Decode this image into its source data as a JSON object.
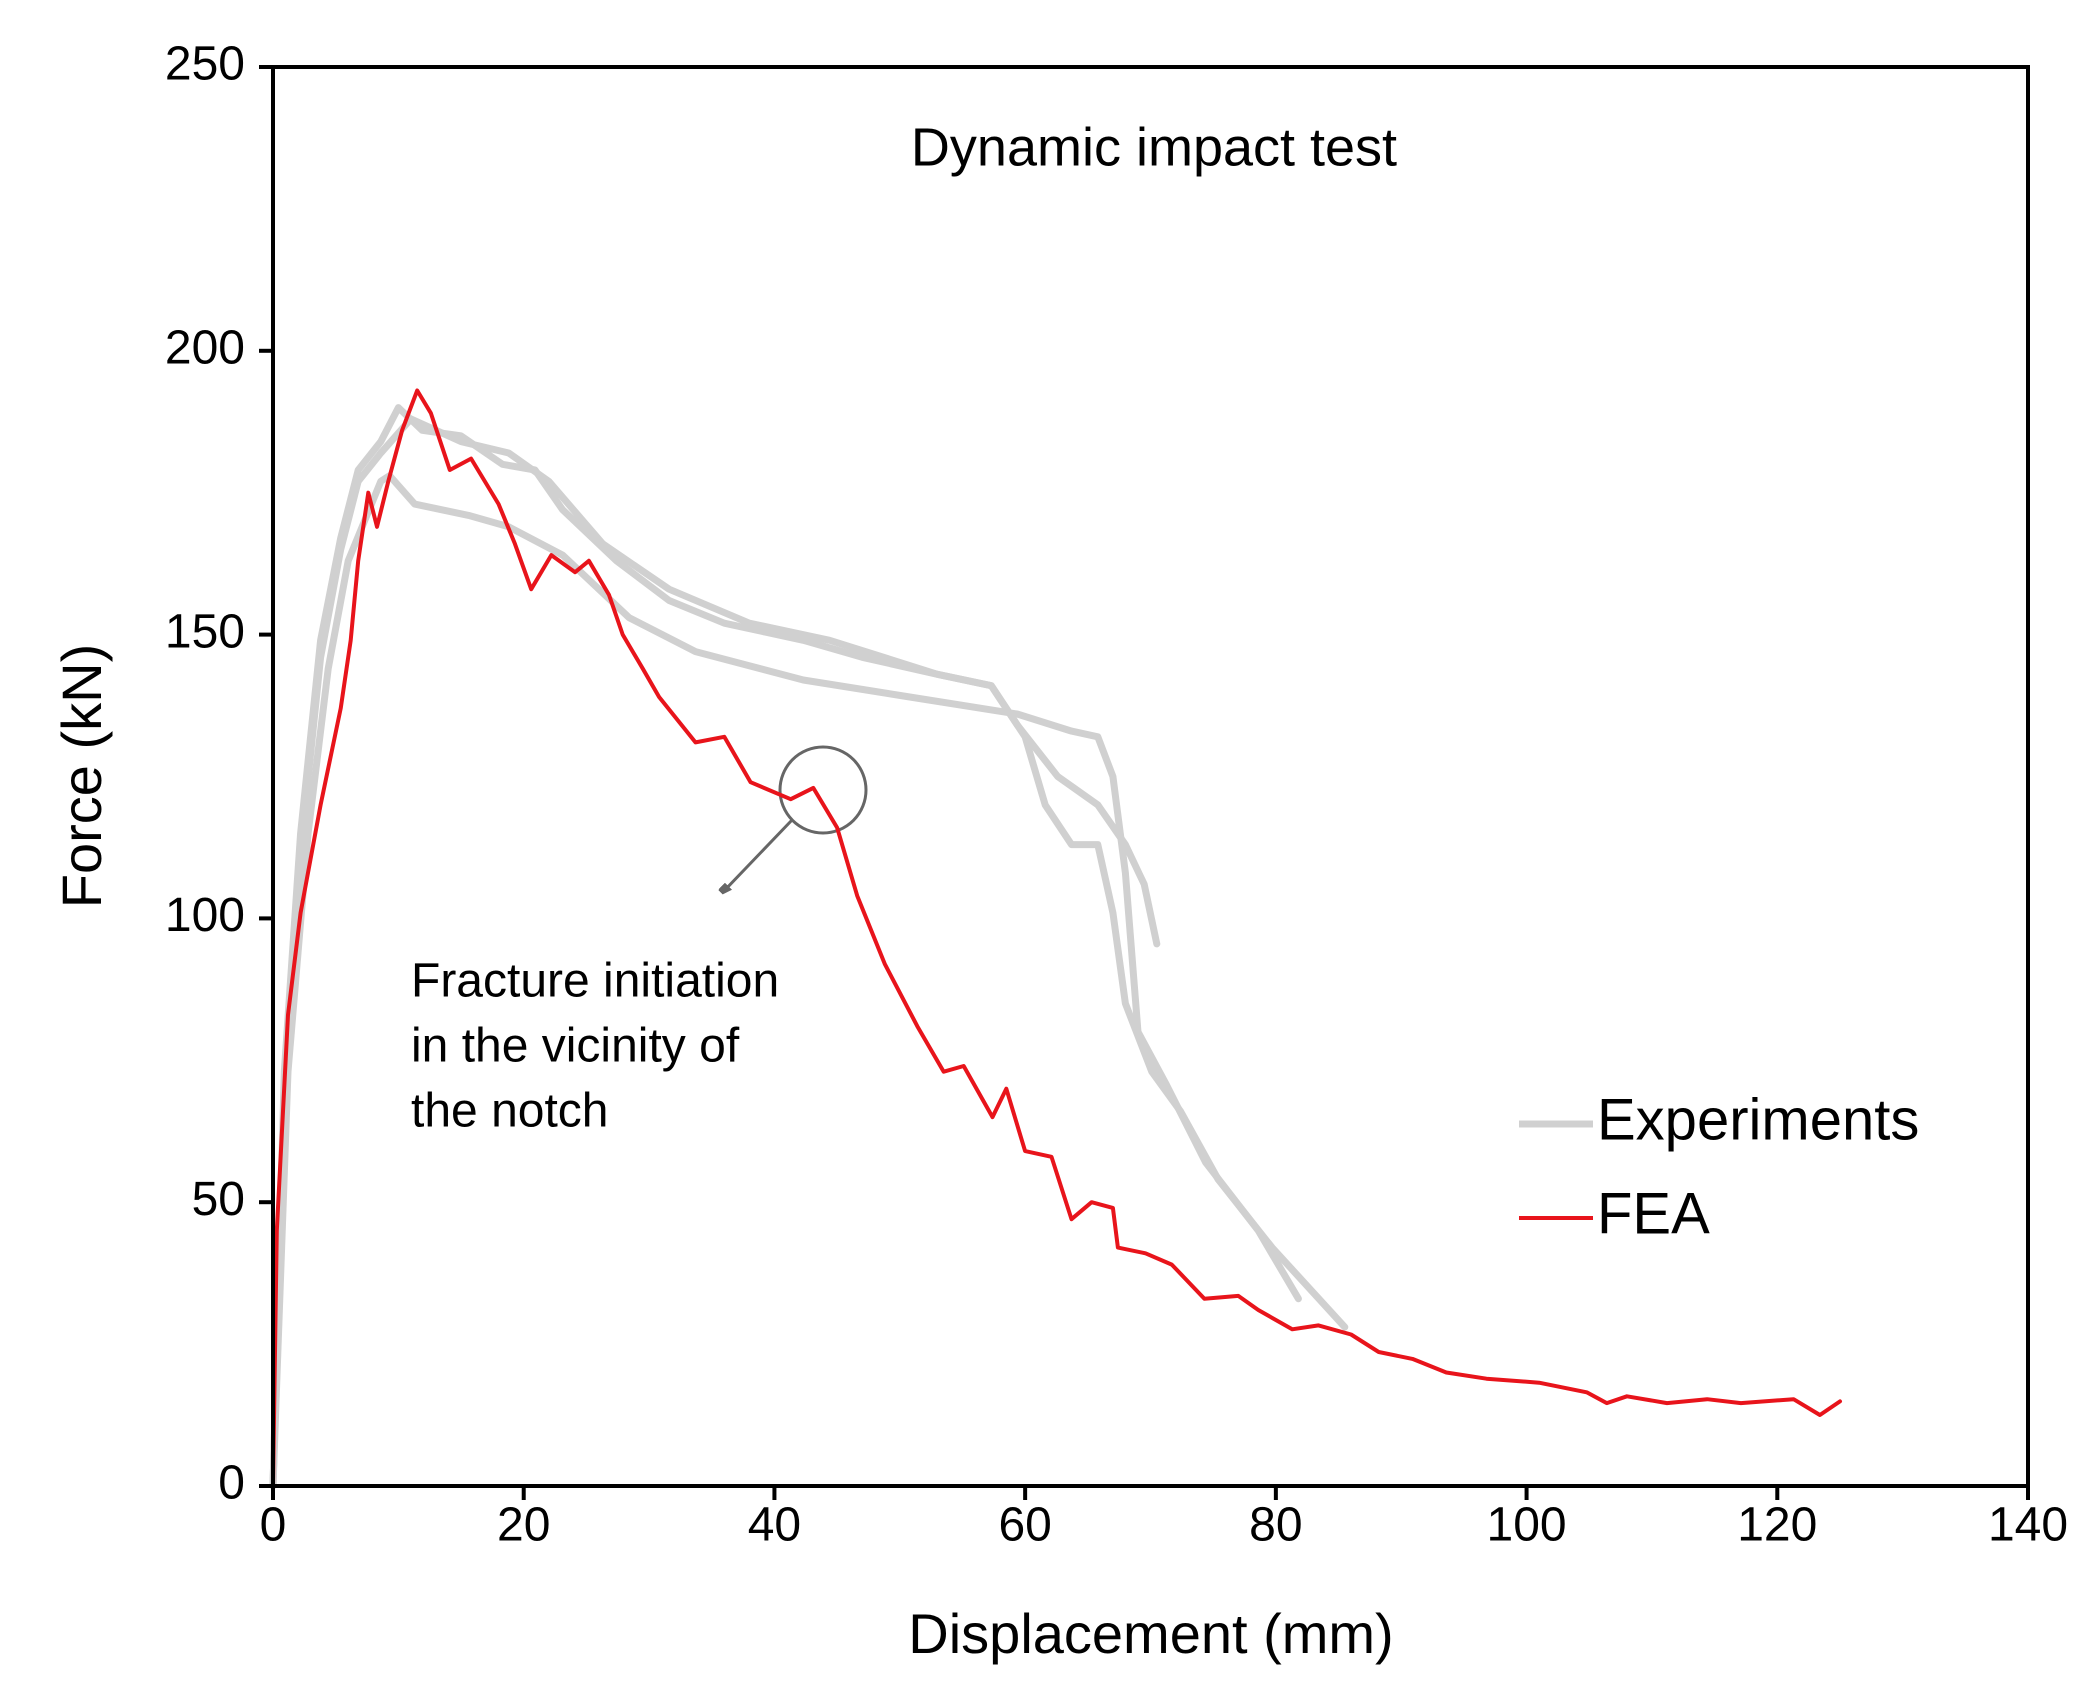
{
  "chart_data": {
    "type": "line",
    "title": "Dynamic impact test",
    "x_label": "Displacement (mm)",
    "y_label": "Force (kN)",
    "annotation": [
      "Fracture initiation",
      "in the vicinity of",
      "the notch"
    ],
    "xlim": [
      0,
      140
    ],
    "xticks": [
      0,
      20,
      40,
      60,
      80,
      100,
      120,
      140
    ],
    "ylim": [
      0,
      250
    ],
    "yticks": [
      0,
      50,
      100,
      150,
      200,
      250
    ],
    "grid": false,
    "legend": "lower right",
    "series": [
      {
        "name": "Experiments",
        "color": "#d0d0d0",
        "lines": [
          {
            "x": [
              0,
              0.9,
              2.2,
              3.8,
              5.4,
              6.8,
              8.6,
              10,
              11.9,
              15,
              18.3,
              20.9,
              23.1,
              27.4,
              31.6,
              36,
              42.3,
              47,
              53,
              57.3,
              59.4,
              62.6,
              65.8,
              68,
              69.5,
              70.5
            ],
            "values": [
              0,
              73,
              115,
              149,
              167,
              179,
              184,
              190,
              186,
              185,
              180,
              179,
              172,
              163,
              156,
              152,
              149,
              146,
              143,
              141,
              134,
              125,
              120,
              113,
              106,
              95.5
            ]
          },
          {
            "x": [
              0,
              0.9,
              2.2,
              3.8,
              5.4,
              6.8,
              8.6,
              11,
              15,
              18.8,
              22,
              26.3,
              31.6,
              38,
              44.4,
              53,
              57.3,
              60,
              61.6,
              63.7,
              65.8,
              67,
              68,
              70.1,
              72.4,
              75.4,
              79.7,
              85.5
            ],
            "values": [
              0,
              70,
              112,
              146,
              165,
              177,
              182,
              188,
              184,
              182,
              177,
              166,
              158,
              152,
              149,
              143,
              141,
              132,
              120,
              113,
              113,
              101,
              85,
              73,
              66,
              54,
              42,
              28
            ]
          },
          {
            "x": [
              0,
              1.2,
              2.8,
              4.4,
              6,
              8.6,
              9.3,
              11.3,
              15.6,
              18.8,
              23.1,
              28.4,
              33.7,
              42.3,
              50.8,
              59.4,
              63.7,
              65.8,
              67,
              68,
              69,
              71.2,
              74.4,
              78.6,
              81.8
            ],
            "values": [
              0,
              73,
              115,
              144,
              163,
              177,
              178,
              173,
              171,
              169,
              164,
              153,
              147,
              142,
              139,
              136,
              133,
              132,
              125,
              108,
              80,
              71,
              57,
              45,
              33
            ]
          }
        ]
      },
      {
        "name": "FEA",
        "color": "#e8141b",
        "lines": [
          {
            "x": [
              0,
              0.3,
              1.2,
              2.2,
              3.8,
              5.4,
              6.2,
              6.8,
              7.6,
              8.3,
              9.2,
              10.3,
              11.5,
              12.6,
              14.1,
              15.8,
              18,
              19.3,
              20.6,
              22.2,
              24.1,
              25.2,
              26.8,
              27.9,
              29.5,
              30.8,
              33.7,
              36,
              38.1,
              41.3,
              43.1,
              45,
              46.6,
              48.8,
              51.4,
              53.5,
              55.1,
              57.4,
              58.5,
              60,
              62.1,
              63.7,
              65.3,
              67,
              67.4,
              69.6,
              71.7,
              74.3,
              77,
              78.6,
              81.3,
              83.4,
              86,
              88.2,
              90.9,
              93.6,
              96.8,
              101,
              104.8,
              106.4,
              108,
              111.2,
              114.4,
              117.1,
              121.3,
              123.4,
              125
            ],
            "values": [
              0,
              45,
              83,
              101,
              120,
              137,
              149,
              163,
              175,
              169,
              177,
              186,
              193,
              189,
              179,
              181,
              173,
              166,
              158,
              164,
              161,
              163,
              157,
              150,
              144,
              139,
              131,
              132,
              124,
              121,
              123,
              116,
              104,
              92,
              81,
              73,
              74,
              65,
              70,
              59,
              58,
              47,
              50,
              49,
              42,
              41,
              39,
              33,
              33.5,
              31,
              27.6,
              28.3,
              26.7,
              23.6,
              22.4,
              20,
              18.9,
              18.2,
              16.5,
              14.6,
              15.8,
              14.6,
              15.3,
              14.6,
              15.3,
              12.5,
              14.9
            ]
          }
        ]
      }
    ]
  }
}
